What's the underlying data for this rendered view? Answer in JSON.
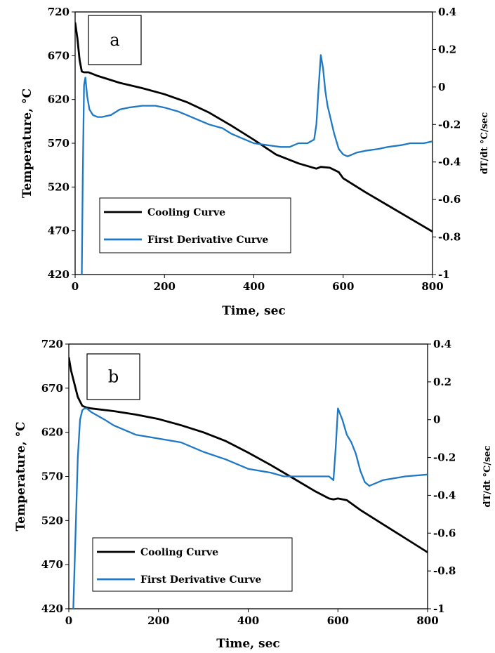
{
  "chart_data": [
    {
      "type": "line",
      "panel_label": "a",
      "xlabel": "Time, sec",
      "ylabel": "Temperature, °C",
      "y2label": "dT/dt °C/sec",
      "xlim": [
        0,
        800
      ],
      "ylim": [
        420,
        720
      ],
      "y2lim": [
        -1,
        0.4
      ],
      "xticks": [
        "0",
        "200",
        "400",
        "600",
        "800"
      ],
      "yticks": [
        "420",
        "470",
        "520",
        "570",
        "620",
        "670",
        "720"
      ],
      "y2ticks": [
        "-1",
        "-0.8",
        "-0.6",
        "-0.4",
        "-0.2",
        "0",
        "0.2",
        "0.4"
      ],
      "grid": false,
      "legend_position": "bottom-left",
      "series": [
        {
          "name": "Cooling Curve",
          "axis": "left",
          "color": "#000000",
          "x": [
            0,
            5,
            10,
            15,
            20,
            30,
            50,
            100,
            150,
            200,
            250,
            300,
            350,
            400,
            450,
            500,
            540,
            550,
            570,
            590,
            600,
            650,
            700,
            750,
            800
          ],
          "y": [
            708,
            690,
            665,
            652,
            651,
            651,
            647,
            639,
            633,
            626,
            617,
            605,
            590,
            574,
            557,
            547,
            541,
            543,
            542,
            537,
            530,
            514,
            499,
            484,
            469
          ]
        },
        {
          "name": "First Derivative Curve",
          "axis": "right",
          "color": "#1f78c4",
          "x": [
            15,
            17,
            20,
            23,
            27,
            32,
            40,
            50,
            60,
            80,
            100,
            120,
            150,
            180,
            200,
            230,
            250,
            280,
            300,
            330,
            350,
            380,
            400,
            430,
            460,
            480,
            500,
            520,
            535,
            540,
            545,
            550,
            555,
            560,
            565,
            570,
            575,
            580,
            590,
            600,
            610,
            630,
            650,
            680,
            700,
            730,
            750,
            780,
            800
          ],
          "y": [
            -1.0,
            -0.5,
            0.01,
            0.05,
            -0.05,
            -0.12,
            -0.15,
            -0.16,
            -0.16,
            -0.15,
            -0.12,
            -0.11,
            -0.1,
            -0.1,
            -0.11,
            -0.13,
            -0.15,
            -0.18,
            -0.2,
            -0.22,
            -0.25,
            -0.28,
            -0.3,
            -0.31,
            -0.32,
            -0.32,
            -0.3,
            -0.3,
            -0.28,
            -0.2,
            0.0,
            0.17,
            0.1,
            -0.02,
            -0.1,
            -0.15,
            -0.2,
            -0.25,
            -0.33,
            -0.36,
            -0.37,
            -0.35,
            -0.34,
            -0.33,
            -0.32,
            -0.31,
            -0.3,
            -0.3,
            -0.29
          ]
        }
      ]
    },
    {
      "type": "line",
      "panel_label": "b",
      "xlabel": "Time, sec",
      "ylabel": "Temperature, °C",
      "y2label": "dT/dt  °C/sec",
      "xlim": [
        0,
        800
      ],
      "ylim": [
        420,
        720
      ],
      "y2lim": [
        -1,
        0.4
      ],
      "xticks": [
        "0",
        "200",
        "400",
        "600",
        "800"
      ],
      "yticks": [
        "420",
        "470",
        "520",
        "570",
        "620",
        "670",
        "720"
      ],
      "y2ticks": [
        "-1",
        "-0.8",
        "-0.6",
        "-0.4",
        "-0.2",
        "0",
        "0.2",
        "0.4"
      ],
      "grid": false,
      "legend_position": "bottom-left",
      "series": [
        {
          "name": "Cooling Curve",
          "axis": "left",
          "color": "#000000",
          "x": [
            0,
            5,
            10,
            20,
            30,
            40,
            50,
            100,
            150,
            200,
            250,
            300,
            350,
            400,
            450,
            500,
            550,
            580,
            590,
            600,
            620,
            650,
            700,
            750,
            800
          ],
          "y": [
            705,
            690,
            680,
            660,
            650,
            648,
            647,
            644,
            640,
            635,
            628,
            620,
            610,
            597,
            583,
            568,
            553,
            545,
            544,
            545,
            543,
            532,
            516,
            500,
            484
          ]
        },
        {
          "name": "First Derivative Curve",
          "axis": "right",
          "color": "#1f78c4",
          "x": [
            10,
            15,
            20,
            25,
            30,
            35,
            40,
            50,
            80,
            100,
            150,
            200,
            250,
            300,
            350,
            400,
            450,
            480,
            500,
            550,
            580,
            590,
            595,
            600,
            610,
            620,
            630,
            640,
            650,
            660,
            670,
            700,
            750,
            800
          ],
          "y": [
            -1.0,
            -0.6,
            -0.2,
            0.0,
            0.05,
            0.06,
            0.06,
            0.04,
            0.0,
            -0.03,
            -0.08,
            -0.1,
            -0.12,
            -0.17,
            -0.21,
            -0.26,
            -0.28,
            -0.3,
            -0.3,
            -0.3,
            -0.3,
            -0.32,
            -0.15,
            0.06,
            0.0,
            -0.08,
            -0.12,
            -0.18,
            -0.27,
            -0.33,
            -0.35,
            -0.32,
            -0.3,
            -0.29
          ]
        }
      ]
    }
  ]
}
